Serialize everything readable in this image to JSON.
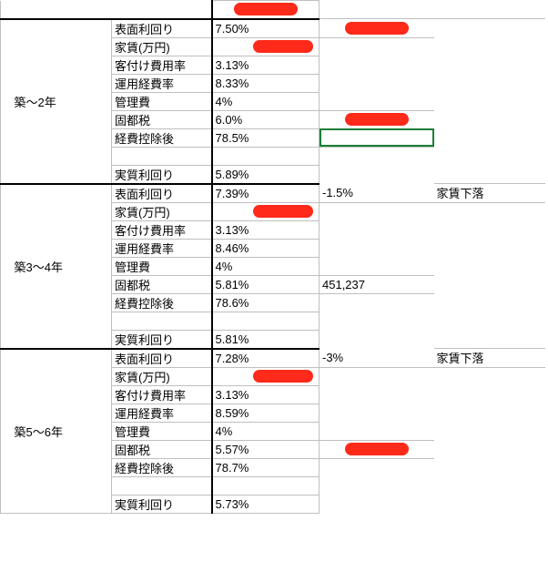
{
  "header_redacted": true,
  "groups": [
    {
      "period": "築～2年",
      "rows": [
        {
          "label": "表面利回り",
          "value": "7.50%",
          "note_redacted": true
        },
        {
          "label": "家賃(万円)",
          "value_redacted": true
        },
        {
          "label": "客付け費用率",
          "value": "3.13%"
        },
        {
          "label": "運用経費率",
          "value": "8.33%"
        },
        {
          "label": "管理費",
          "value": "4%"
        },
        {
          "label": "固都税",
          "value": "6.0%",
          "note_redacted": true
        },
        {
          "label": "経費控除後",
          "value": "78.5%",
          "selected_after": true
        },
        {
          "blank": true
        },
        {
          "label": "実質利回り",
          "value": "5.89%"
        }
      ]
    },
    {
      "period": "築3～4年",
      "rows": [
        {
          "label": "表面利回り",
          "value": "7.39%",
          "note_pct": "-1.5%",
          "note_text": "家賃下落"
        },
        {
          "label": "家賃(万円)",
          "value_redacted": true
        },
        {
          "label": "客付け費用率",
          "value": "3.13%"
        },
        {
          "label": "運用経費率",
          "value": "8.46%"
        },
        {
          "label": "管理費",
          "value": "4%"
        },
        {
          "label": "固都税",
          "value": "5.81%",
          "note_value": "451,237"
        },
        {
          "label": "経費控除後",
          "value": "78.6%"
        },
        {
          "blank": true
        },
        {
          "label": "実質利回り",
          "value": "5.81%"
        }
      ]
    },
    {
      "period": "築5～6年",
      "rows": [
        {
          "label": "表面利回り",
          "value": "7.28%",
          "note_pct": "-3%",
          "note_text": "家賃下落"
        },
        {
          "label": "家賃(万円)",
          "value_redacted": true
        },
        {
          "label": "客付け費用率",
          "value": "3.13%"
        },
        {
          "label": "運用経費率",
          "value": "8.59%"
        },
        {
          "label": "管理費",
          "value": "4%"
        },
        {
          "label": "固都税",
          "value": "5.57%",
          "note_redacted": true
        },
        {
          "label": "経費控除後",
          "value": "78.7%"
        },
        {
          "blank": true
        },
        {
          "label": "実質利回り",
          "value": "5.73%"
        }
      ]
    }
  ]
}
